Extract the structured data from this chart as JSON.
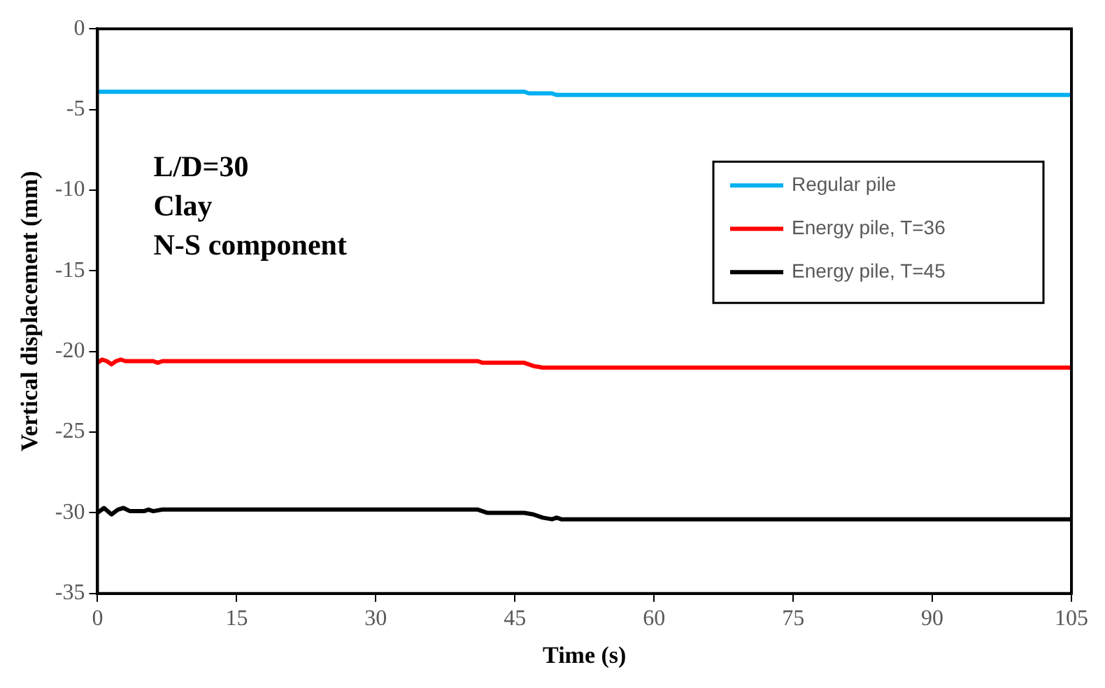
{
  "chart_data": {
    "type": "line",
    "xlabel": "Time (s)",
    "ylabel": "Vertical displacement (mm)",
    "annotations": [
      "L/D=30",
      "Clay",
      "N-S component"
    ],
    "xlim": [
      0,
      105
    ],
    "xticks": [
      0,
      15,
      30,
      45,
      60,
      75,
      90,
      105
    ],
    "ylim": [
      -35,
      0
    ],
    "yticks": [
      -35,
      -30,
      -25,
      -20,
      -15,
      -10,
      -5,
      0
    ],
    "grid": false,
    "legend": "top right",
    "marker": "none",
    "line_style": "solid",
    "series": [
      {
        "name": "Regular pile",
        "color": "#00b0f0",
        "x": [
          0,
          46,
          46.5,
          49,
          49.5,
          105
        ],
        "values": [
          -3.9,
          -3.9,
          -4.0,
          -4.0,
          -4.1,
          -4.1
        ]
      },
      {
        "name": "Energy pile, T=36",
        "color": "#ff0000",
        "x": [
          0,
          0.5,
          1,
          1.5,
          2,
          2.5,
          3,
          6,
          6.5,
          7,
          41,
          41.5,
          46,
          47,
          48,
          50,
          105
        ],
        "values": [
          -20.7,
          -20.5,
          -20.6,
          -20.8,
          -20.6,
          -20.5,
          -20.6,
          -20.6,
          -20.7,
          -20.6,
          -20.6,
          -20.7,
          -20.7,
          -20.9,
          -21.0,
          -21.0,
          -21.0
        ]
      },
      {
        "name": "Energy pile, T=45",
        "color": "#000000",
        "x": [
          0,
          0.7,
          1.5,
          2.2,
          2.8,
          3.5,
          5,
          5.5,
          6,
          7,
          41,
          42,
          46,
          47,
          48,
          49,
          49.5,
          50,
          105
        ],
        "values": [
          -30.0,
          -29.7,
          -30.1,
          -29.8,
          -29.7,
          -29.9,
          -29.9,
          -29.8,
          -29.9,
          -29.8,
          -29.8,
          -30.0,
          -30.0,
          -30.1,
          -30.3,
          -30.4,
          -30.3,
          -30.4,
          -30.4
        ]
      }
    ]
  }
}
